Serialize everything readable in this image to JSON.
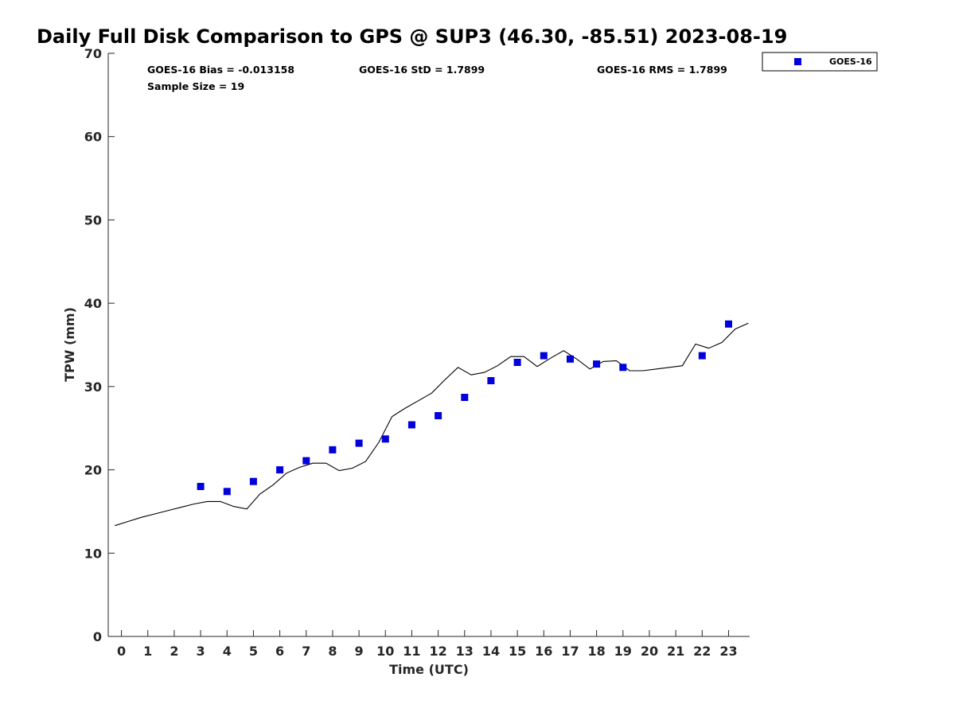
{
  "chart_data": {
    "type": "scatter",
    "title": "Daily Full Disk Comparison to GPS @ SUP3 (46.30, -85.51) 2023-08-19",
    "xlabel": "Time (UTC)",
    "ylabel": "TPW (mm)",
    "xlim": [
      -0.5,
      23.8
    ],
    "ylim": [
      0,
      70
    ],
    "xticks": [
      0,
      1,
      2,
      3,
      4,
      5,
      6,
      7,
      8,
      9,
      10,
      11,
      12,
      13,
      14,
      15,
      16,
      17,
      18,
      19,
      20,
      21,
      22,
      23
    ],
    "yticks": [
      0,
      10,
      20,
      30,
      40,
      50,
      60,
      70
    ],
    "grid": false,
    "legend": {
      "placement": "top-right outside",
      "entries": [
        "GOES-16"
      ]
    },
    "colors": {
      "goes16": "#0000dd",
      "gps_line": "#000000"
    },
    "stats": {
      "bias": "GOES-16 Bias = -0.013158",
      "std": "GOES-16 StD = 1.7899",
      "rms": "GOES-16 RMS = 1.7899",
      "sample": "Sample Size = 19"
    },
    "series": [
      {
        "name": "GOES-16",
        "kind": "scatter",
        "x": [
          3,
          4,
          5,
          6,
          7,
          8,
          9,
          10,
          11,
          12,
          13,
          14,
          15,
          16,
          17,
          18,
          19,
          22,
          23
        ],
        "y": [
          18.0,
          17.4,
          18.6,
          20.0,
          21.1,
          22.4,
          23.2,
          23.7,
          25.4,
          26.5,
          28.7,
          30.7,
          32.9,
          33.7,
          33.3,
          32.7,
          32.3,
          33.7,
          37.5
        ]
      },
      {
        "kind": "line",
        "x": [
          -0.25,
          0.25,
          0.75,
          1.25,
          1.75,
          2.25,
          2.75,
          3.25,
          3.75,
          4.25,
          4.75,
          5.25,
          5.75,
          6.25,
          6.75,
          7.25,
          7.75,
          8.25,
          8.75,
          9.25,
          9.75,
          10.25,
          10.75,
          11.25,
          11.75,
          12.25,
          12.75,
          13.25,
          13.75,
          14.25,
          14.75,
          15.25,
          15.75,
          16.25,
          16.75,
          17.25,
          17.75,
          18.25,
          18.75,
          19.25,
          19.75,
          20.25,
          20.75,
          21.25,
          21.75,
          22.25,
          22.75,
          23.25,
          23.75
        ],
        "y": [
          13.3,
          13.8,
          14.3,
          14.7,
          15.1,
          15.5,
          15.9,
          16.2,
          16.2,
          15.6,
          15.3,
          17.1,
          18.2,
          19.6,
          20.3,
          20.8,
          20.8,
          19.9,
          20.2,
          21.0,
          23.3,
          26.4,
          27.4,
          28.3,
          29.2,
          30.8,
          32.3,
          31.4,
          31.7,
          32.5,
          33.6,
          33.6,
          32.4,
          33.4,
          34.3,
          33.3,
          32.1,
          33.0,
          33.1,
          31.9,
          31.9,
          32.1,
          32.3,
          32.5,
          35.1,
          34.6,
          35.3,
          36.9,
          37.6
        ]
      }
    ]
  }
}
